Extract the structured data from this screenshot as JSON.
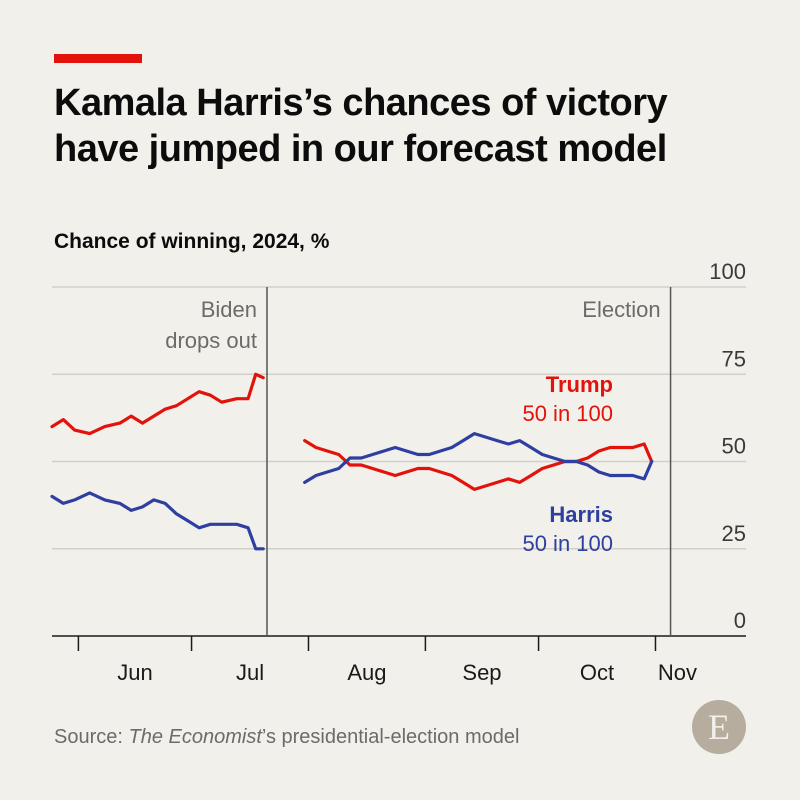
{
  "title": "Kamala Harris’s chances of victory have jumped in our forecast model",
  "subtitle": "Chance of winning, 2024, %",
  "source": {
    "prefix": "Source: ",
    "publication": "The Economist",
    "suffix": "’s presidential-election model"
  },
  "logo_letter": "E",
  "colors": {
    "trump": "#e3120b",
    "harris": "#2f3ea1",
    "brand_red": "#e3120b"
  },
  "chart_data": {
    "type": "line",
    "ylim": [
      0,
      100
    ],
    "yticks": [
      0,
      25,
      50,
      75,
      100
    ],
    "x_range": [
      "2024-05-25",
      "2024-11-25"
    ],
    "x_months": [
      {
        "label": "Jun",
        "start": "2024-06-01"
      },
      {
        "label": "Jul",
        "start": "2024-07-01"
      },
      {
        "label": "Aug",
        "start": "2024-08-01"
      },
      {
        "label": "Sep",
        "start": "2024-09-01"
      },
      {
        "label": "Oct",
        "start": "2024-10-01"
      },
      {
        "label": "Nov",
        "start": "2024-11-01"
      }
    ],
    "grid": true,
    "annotations": [
      {
        "date": "2024-07-21",
        "label_lines": [
          "Biden",
          "drops out"
        ]
      },
      {
        "date": "2024-11-05",
        "label_lines": [
          "Election"
        ]
      }
    ],
    "series": [
      {
        "name": "Trump",
        "label": "Trump",
        "value_label": "50 in 100",
        "color": "#e3120b",
        "segments": [
          [
            [
              "2024-05-25",
              60
            ],
            [
              "2024-05-28",
              62
            ],
            [
              "2024-05-31",
              59
            ],
            [
              "2024-06-04",
              58
            ],
            [
              "2024-06-08",
              60
            ],
            [
              "2024-06-12",
              61
            ],
            [
              "2024-06-15",
              63
            ],
            [
              "2024-06-18",
              61
            ],
            [
              "2024-06-21",
              63
            ],
            [
              "2024-06-24",
              65
            ],
            [
              "2024-06-27",
              66
            ],
            [
              "2024-06-30",
              68
            ],
            [
              "2024-07-03",
              70
            ],
            [
              "2024-07-06",
              69
            ],
            [
              "2024-07-09",
              67
            ],
            [
              "2024-07-13",
              68
            ],
            [
              "2024-07-16",
              68
            ],
            [
              "2024-07-18",
              75
            ],
            [
              "2024-07-20",
              74
            ]
          ],
          [
            [
              "2024-07-31",
              56
            ],
            [
              "2024-08-03",
              54
            ],
            [
              "2024-08-06",
              53
            ],
            [
              "2024-08-09",
              52
            ],
            [
              "2024-08-12",
              49
            ],
            [
              "2024-08-15",
              49
            ],
            [
              "2024-08-18",
              48
            ],
            [
              "2024-08-21",
              47
            ],
            [
              "2024-08-24",
              46
            ],
            [
              "2024-08-27",
              47
            ],
            [
              "2024-08-30",
              48
            ],
            [
              "2024-09-02",
              48
            ],
            [
              "2024-09-05",
              47
            ],
            [
              "2024-09-08",
              46
            ],
            [
              "2024-09-11",
              44
            ],
            [
              "2024-09-14",
              42
            ],
            [
              "2024-09-17",
              43
            ],
            [
              "2024-09-20",
              44
            ],
            [
              "2024-09-23",
              45
            ],
            [
              "2024-09-26",
              44
            ],
            [
              "2024-09-29",
              46
            ],
            [
              "2024-10-02",
              48
            ],
            [
              "2024-10-05",
              49
            ],
            [
              "2024-10-08",
              50
            ],
            [
              "2024-10-11",
              50
            ],
            [
              "2024-10-14",
              51
            ],
            [
              "2024-10-17",
              53
            ],
            [
              "2024-10-20",
              54
            ],
            [
              "2024-10-23",
              54
            ],
            [
              "2024-10-26",
              54
            ],
            [
              "2024-10-29",
              55
            ],
            [
              "2024-10-31",
              50
            ]
          ]
        ]
      },
      {
        "name": "Harris",
        "label": "Harris",
        "value_label": "50 in 100",
        "color": "#2f3ea1",
        "segments": [
          [
            [
              "2024-05-25",
              40
            ],
            [
              "2024-05-28",
              38
            ],
            [
              "2024-05-31",
              39
            ],
            [
              "2024-06-04",
              41
            ],
            [
              "2024-06-08",
              39
            ],
            [
              "2024-06-12",
              38
            ],
            [
              "2024-06-15",
              36
            ],
            [
              "2024-06-18",
              37
            ],
            [
              "2024-06-21",
              39
            ],
            [
              "2024-06-24",
              38
            ],
            [
              "2024-06-27",
              35
            ],
            [
              "2024-06-30",
              33
            ],
            [
              "2024-07-03",
              31
            ],
            [
              "2024-07-06",
              32
            ],
            [
              "2024-07-09",
              32
            ],
            [
              "2024-07-13",
              32
            ],
            [
              "2024-07-16",
              31
            ],
            [
              "2024-07-18",
              25
            ],
            [
              "2024-07-20",
              25
            ]
          ],
          [
            [
              "2024-07-31",
              44
            ],
            [
              "2024-08-03",
              46
            ],
            [
              "2024-08-06",
              47
            ],
            [
              "2024-08-09",
              48
            ],
            [
              "2024-08-12",
              51
            ],
            [
              "2024-08-15",
              51
            ],
            [
              "2024-08-18",
              52
            ],
            [
              "2024-08-21",
              53
            ],
            [
              "2024-08-24",
              54
            ],
            [
              "2024-08-27",
              53
            ],
            [
              "2024-08-30",
              52
            ],
            [
              "2024-09-02",
              52
            ],
            [
              "2024-09-05",
              53
            ],
            [
              "2024-09-08",
              54
            ],
            [
              "2024-09-11",
              56
            ],
            [
              "2024-09-14",
              58
            ],
            [
              "2024-09-17",
              57
            ],
            [
              "2024-09-20",
              56
            ],
            [
              "2024-09-23",
              55
            ],
            [
              "2024-09-26",
              56
            ],
            [
              "2024-09-29",
              54
            ],
            [
              "2024-10-02",
              52
            ],
            [
              "2024-10-05",
              51
            ],
            [
              "2024-10-08",
              50
            ],
            [
              "2024-10-11",
              50
            ],
            [
              "2024-10-14",
              49
            ],
            [
              "2024-10-17",
              47
            ],
            [
              "2024-10-20",
              46
            ],
            [
              "2024-10-23",
              46
            ],
            [
              "2024-10-26",
              46
            ],
            [
              "2024-10-29",
              45
            ],
            [
              "2024-10-31",
              50
            ]
          ]
        ]
      }
    ]
  }
}
